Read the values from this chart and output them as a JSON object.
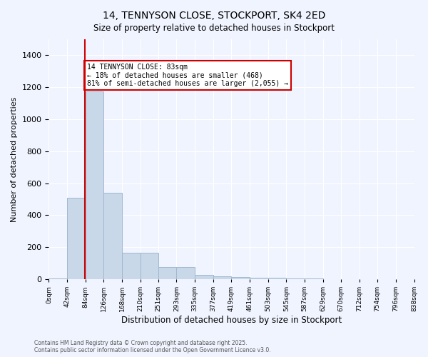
{
  "title_line1": "14, TENNYSON CLOSE, STOCKPORT, SK4 2ED",
  "title_line2": "Size of property relative to detached houses in Stockport",
  "xlabel": "Distribution of detached houses by size in Stockport",
  "ylabel": "Number of detached properties",
  "bar_color": "#c8d8e8",
  "bar_edge_color": "#a0b8d0",
  "vline_color": "#cc0000",
  "vline_x": 83,
  "annotation_text": "14 TENNYSON CLOSE: 83sqm\n← 18% of detached houses are smaller (468)\n81% of semi-detached houses are larger (2,055) →",
  "bin_edges": [
    0,
    42,
    84,
    126,
    168,
    210,
    251,
    293,
    335,
    377,
    419,
    461,
    503,
    545,
    587,
    629,
    670,
    712,
    754,
    796,
    838
  ],
  "bin_labels": [
    "0sqm",
    "42sqm",
    "84sqm",
    "126sqm",
    "168sqm",
    "210sqm",
    "251sqm",
    "293sqm",
    "335sqm",
    "377sqm",
    "419sqm",
    "461sqm",
    "503sqm",
    "545sqm",
    "587sqm",
    "629sqm",
    "670sqm",
    "712sqm",
    "754sqm",
    "796sqm",
    "838sqm"
  ],
  "bar_heights": [
    5,
    510,
    1175,
    540,
    165,
    165,
    75,
    75,
    25,
    20,
    15,
    10,
    10,
    5,
    3,
    2,
    1,
    1,
    1,
    1
  ],
  "ylim": [
    0,
    1500
  ],
  "yticks": [
    0,
    200,
    400,
    600,
    800,
    1000,
    1200,
    1400
  ],
  "footer_text": "Contains HM Land Registry data © Crown copyright and database right 2025.\nContains public sector information licensed under the Open Government Licence v3.0.",
  "bg_color": "#f0f4ff",
  "plot_bg_color": "#f0f4ff"
}
